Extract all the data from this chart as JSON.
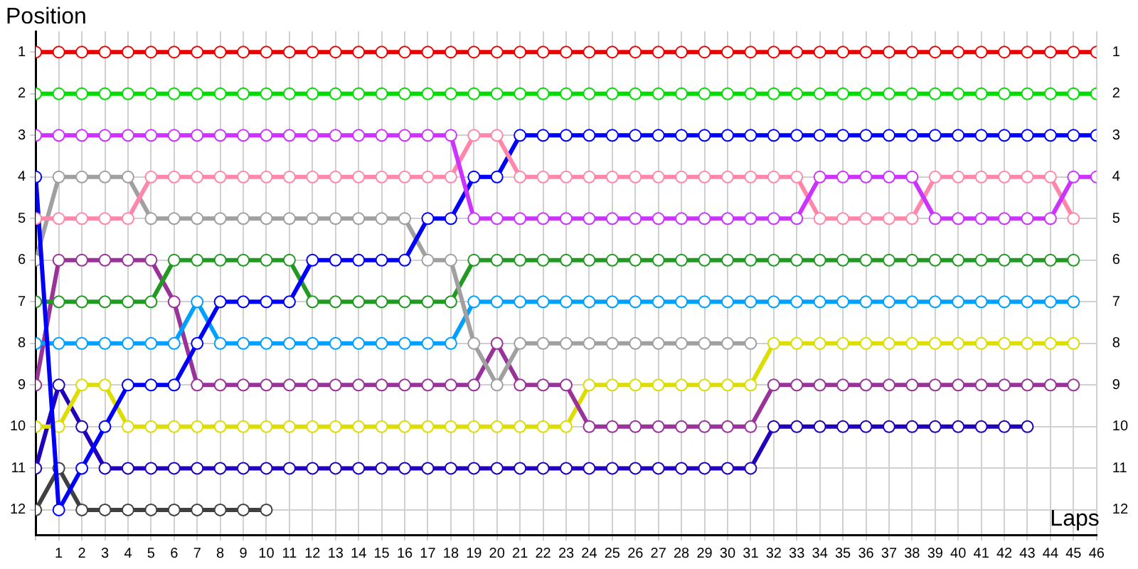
{
  "chart_data": {
    "type": "line",
    "xlabel": "Laps",
    "ylabel": "Position",
    "x": [
      0,
      1,
      2,
      3,
      4,
      5,
      6,
      7,
      8,
      9,
      10,
      11,
      12,
      13,
      14,
      15,
      16,
      17,
      18,
      19,
      20,
      21,
      22,
      23,
      24,
      25,
      26,
      27,
      28,
      29,
      30,
      31,
      32,
      33,
      34,
      35,
      36,
      37,
      38,
      39,
      40,
      41,
      42,
      43,
      44,
      45,
      46
    ],
    "xlim": [
      0,
      46
    ],
    "xticks": [
      {
        "value": 0,
        "label": null
      },
      1,
      2,
      3,
      4,
      5,
      6,
      7,
      8,
      9,
      10,
      11,
      12,
      13,
      14,
      15,
      16,
      17,
      18,
      19,
      20,
      21,
      22,
      23,
      24,
      25,
      26,
      27,
      28,
      29,
      30,
      31,
      32,
      33,
      34,
      35,
      36,
      37,
      38,
      39,
      40,
      41,
      42,
      43,
      44,
      45,
      46
    ],
    "ylim": [
      12.6,
      0.5
    ],
    "yticks": [
      1,
      2,
      3,
      4,
      5,
      6,
      7,
      8,
      9,
      10,
      11,
      12
    ],
    "y2lim": [
      12.6,
      0.5
    ],
    "y2ticks": [
      1,
      2,
      3,
      4,
      5,
      6,
      7,
      8,
      9,
      10,
      11,
      12
    ],
    "grid": true,
    "legend": false,
    "marker": "circle",
    "line_style": "solid",
    "series": [
      {
        "color": "#ee0000",
        "values": [
          1,
          1,
          1,
          1,
          1,
          1,
          1,
          1,
          1,
          1,
          1,
          1,
          1,
          1,
          1,
          1,
          1,
          1,
          1,
          1,
          1,
          1,
          1,
          1,
          1,
          1,
          1,
          1,
          1,
          1,
          1,
          1,
          1,
          1,
          1,
          1,
          1,
          1,
          1,
          1,
          1,
          1,
          1,
          1,
          1,
          1,
          1
        ]
      },
      {
        "color": "#00dd00",
        "values": [
          2,
          2,
          2,
          2,
          2,
          2,
          2,
          2,
          2,
          2,
          2,
          2,
          2,
          2,
          2,
          2,
          2,
          2,
          2,
          2,
          2,
          2,
          2,
          2,
          2,
          2,
          2,
          2,
          2,
          2,
          2,
          2,
          2,
          2,
          2,
          2,
          2,
          2,
          2,
          2,
          2,
          2,
          2,
          2,
          2,
          2,
          2
        ]
      },
      {
        "color": "#cc33ff",
        "values": [
          3,
          3,
          3,
          3,
          3,
          3,
          3,
          3,
          3,
          3,
          3,
          3,
          3,
          3,
          3,
          3,
          3,
          3,
          3,
          5,
          5,
          5,
          5,
          5,
          5,
          5,
          5,
          5,
          5,
          5,
          5,
          5,
          5,
          5,
          4,
          4,
          4,
          4,
          4,
          5,
          5,
          5,
          5,
          5,
          5,
          4,
          4
        ]
      },
      {
        "color": "#ff88aa",
        "values": [
          5,
          5,
          5,
          5,
          5,
          4,
          4,
          4,
          4,
          4,
          4,
          4,
          4,
          4,
          4,
          4,
          4,
          4,
          4,
          3,
          3,
          4,
          4,
          4,
          4,
          4,
          4,
          4,
          4,
          4,
          4,
          4,
          4,
          4,
          5,
          5,
          5,
          5,
          5,
          4,
          4,
          4,
          4,
          4,
          4,
          5,
          null
        ]
      },
      {
        "color": "#0000ff",
        "values": [
          4,
          12,
          11,
          10,
          9,
          9,
          9,
          8,
          7,
          7,
          7,
          7,
          6,
          6,
          6,
          6,
          6,
          5,
          5,
          4,
          4,
          3,
          3,
          3,
          3,
          3,
          3,
          3,
          3,
          3,
          3,
          3,
          3,
          3,
          3,
          3,
          3,
          3,
          3,
          3,
          3,
          3,
          3,
          3,
          3,
          3,
          3
        ]
      },
      {
        "color": "#a0a0a0",
        "values": [
          6,
          4,
          4,
          4,
          4,
          5,
          5,
          5,
          5,
          5,
          5,
          5,
          5,
          5,
          5,
          5,
          5,
          6,
          6,
          8,
          9,
          8,
          8,
          8,
          8,
          8,
          8,
          8,
          8,
          8,
          8,
          8,
          null,
          null,
          null,
          null,
          null,
          null,
          null,
          null,
          null,
          null,
          null,
          null,
          null,
          null,
          null
        ]
      },
      {
        "color": "#229922",
        "values": [
          7,
          7,
          7,
          7,
          7,
          7,
          6,
          6,
          6,
          6,
          6,
          6,
          7,
          7,
          7,
          7,
          7,
          7,
          7,
          6,
          6,
          6,
          6,
          6,
          6,
          6,
          6,
          6,
          6,
          6,
          6,
          6,
          6,
          6,
          6,
          6,
          6,
          6,
          6,
          6,
          6,
          6,
          6,
          6,
          6,
          6,
          null
        ]
      },
      {
        "color": "#00a0ff",
        "values": [
          8,
          8,
          8,
          8,
          8,
          8,
          8,
          7,
          8,
          8,
          8,
          8,
          8,
          8,
          8,
          8,
          8,
          8,
          8,
          7,
          7,
          7,
          7,
          7,
          7,
          7,
          7,
          7,
          7,
          7,
          7,
          7,
          7,
          7,
          7,
          7,
          7,
          7,
          7,
          7,
          7,
          7,
          7,
          7,
          7,
          7,
          null
        ]
      },
      {
        "color": "#993399",
        "values": [
          9,
          6,
          6,
          6,
          6,
          6,
          7,
          9,
          9,
          9,
          9,
          9,
          9,
          9,
          9,
          9,
          9,
          9,
          9,
          9,
          8,
          9,
          9,
          9,
          10,
          10,
          10,
          10,
          10,
          10,
          10,
          10,
          9,
          9,
          9,
          9,
          9,
          9,
          9,
          9,
          9,
          9,
          9,
          9,
          9,
          9,
          null
        ]
      },
      {
        "color": "#dddd00",
        "values": [
          10,
          10,
          9,
          9,
          10,
          10,
          10,
          10,
          10,
          10,
          10,
          10,
          10,
          10,
          10,
          10,
          10,
          10,
          10,
          10,
          10,
          10,
          10,
          10,
          9,
          9,
          9,
          9,
          9,
          9,
          9,
          9,
          8,
          8,
          8,
          8,
          8,
          8,
          8,
          8,
          8,
          8,
          8,
          8,
          8,
          8,
          null
        ]
      },
      {
        "color": "#2200bb",
        "values": [
          11,
          9,
          10,
          11,
          11,
          11,
          11,
          11,
          11,
          11,
          11,
          11,
          11,
          11,
          11,
          11,
          11,
          11,
          11,
          11,
          11,
          11,
          11,
          11,
          11,
          11,
          11,
          11,
          11,
          11,
          11,
          11,
          10,
          10,
          10,
          10,
          10,
          10,
          10,
          10,
          10,
          10,
          10,
          10,
          null,
          null,
          null
        ]
      },
      {
        "color": "#404040",
        "values": [
          12,
          11,
          12,
          12,
          12,
          12,
          12,
          12,
          12,
          12,
          12,
          null,
          null,
          null,
          null,
          null,
          null,
          null,
          null,
          null,
          null,
          null,
          null,
          null,
          null,
          null,
          null,
          null,
          null,
          null,
          null,
          null,
          null,
          null,
          null,
          null,
          null,
          null,
          null,
          null,
          null,
          null,
          null,
          null,
          null,
          null,
          null
        ]
      }
    ]
  }
}
